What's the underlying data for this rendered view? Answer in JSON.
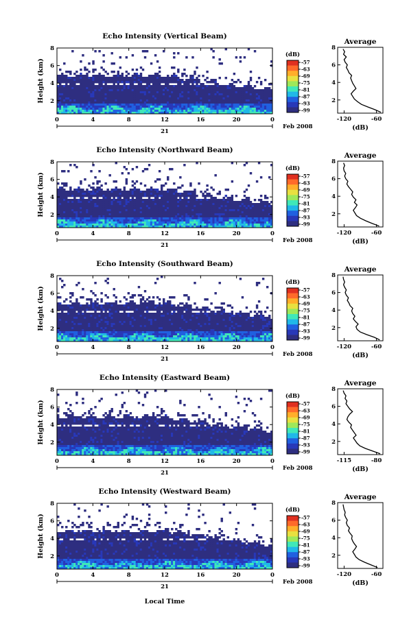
{
  "colorbar": {
    "unit": "(dB)",
    "ticks": [
      "-57",
      "-63",
      "-69",
      "-75",
      "-81",
      "-87",
      "-93",
      "-99"
    ],
    "colors": [
      "#e03020",
      "#ff6a2a",
      "#ffae2a",
      "#e8e040",
      "#9ee85a",
      "#40e8b8",
      "#20b8e8",
      "#2060e0",
      "#2838b8",
      "#2e2e80"
    ]
  },
  "common": {
    "ylabel": "Height (km)",
    "yticks": [
      "2",
      "4",
      "6",
      "8"
    ],
    "xticks": [
      "0",
      "4",
      "8",
      "12",
      "16",
      "20",
      "0"
    ],
    "day": "21",
    "date": "Feb 2008",
    "xlabel": "Local Time",
    "avg_title": "Average",
    "avg_xlabel": "(dB)"
  },
  "chart_data": [
    {
      "type": "heatmap",
      "title": "Echo Intensity (Vertical Beam)",
      "xlim": [
        0,
        24
      ],
      "ylim": [
        0.5,
        8
      ],
      "avg_profile": {
        "xticks": [
          "-120",
          "-60"
        ],
        "xlim": [
          -132,
          -48
        ],
        "height_km": [
          0.6,
          0.9,
          1.2,
          1.5,
          1.8,
          2.1,
          2.4,
          2.7,
          3.0,
          3.3,
          3.6,
          3.9,
          4.2,
          4.5,
          4.8,
          5.1,
          5.4,
          5.7,
          6.0,
          6.3,
          6.6,
          6.9,
          7.2,
          7.5,
          7.8
        ],
        "db": [
          -52,
          -63,
          -76,
          -88,
          -95,
          -101,
          -104,
          -107,
          -103,
          -98,
          -101,
          -104,
          -106,
          -108,
          -106,
          -111,
          -113,
          -116,
          -114,
          -118,
          -120,
          -116,
          -121,
          -119,
          -122
        ]
      }
    },
    {
      "type": "heatmap",
      "title": "Echo Intensity (Northward Beam)",
      "xlim": [
        0,
        24
      ],
      "ylim": [
        0.5,
        8
      ],
      "avg_profile": {
        "xticks": [
          "-120",
          "-60"
        ],
        "xlim": [
          -132,
          -48
        ],
        "height_km": [
          0.6,
          0.9,
          1.2,
          1.5,
          1.8,
          2.1,
          2.4,
          2.7,
          3.0,
          3.3,
          3.6,
          3.9,
          4.2,
          4.5,
          4.8,
          5.1,
          5.4,
          5.7,
          6.0,
          6.3,
          6.6,
          6.9,
          7.2,
          7.5,
          7.8
        ],
        "db": [
          -55,
          -68,
          -80,
          -90,
          -97,
          -100,
          -103,
          -99,
          -96,
          -101,
          -98,
          -103,
          -106,
          -104,
          -108,
          -112,
          -115,
          -113,
          -117,
          -119,
          -117,
          -120,
          -121,
          -119,
          -121
        ]
      }
    },
    {
      "type": "heatmap",
      "title": "Echo Intensity (Southward Beam)",
      "xlim": [
        0,
        24
      ],
      "ylim": [
        0.5,
        8
      ],
      "avg_profile": {
        "xticks": [
          "-120",
          "-60"
        ],
        "xlim": [
          -132,
          -48
        ],
        "height_km": [
          0.6,
          0.9,
          1.2,
          1.5,
          1.8,
          2.1,
          2.4,
          2.7,
          3.0,
          3.3,
          3.6,
          3.9,
          4.2,
          4.5,
          4.8,
          5.1,
          5.4,
          5.7,
          6.0,
          6.3,
          6.6,
          6.9,
          7.2,
          7.5,
          7.8
        ],
        "db": [
          -54,
          -64,
          -78,
          -90,
          -96,
          -98,
          -94,
          -99,
          -103,
          -100,
          -104,
          -106,
          -104,
          -109,
          -111,
          -114,
          -112,
          -116,
          -118,
          -116,
          -119,
          -121,
          -119,
          -121,
          -122
        ]
      }
    },
    {
      "type": "heatmap",
      "title": "Echo Intensity (Eastward Beam)",
      "xlim": [
        0,
        24
      ],
      "ylim": [
        0.5,
        8
      ],
      "avg_profile": {
        "xticks": [
          "-115",
          "-80"
        ],
        "xlim": [
          -122,
          -73
        ],
        "height_km": [
          0.6,
          0.9,
          1.2,
          1.5,
          1.8,
          2.1,
          2.4,
          2.7,
          3.0,
          3.3,
          3.6,
          3.9,
          4.2,
          4.5,
          4.8,
          5.1,
          5.4,
          5.7,
          6.0,
          6.3,
          6.6,
          6.9,
          7.2,
          7.5,
          7.8
        ],
        "db": [
          -76,
          -84,
          -92,
          -98,
          -101,
          -103,
          -105,
          -102,
          -104,
          -106,
          -108,
          -107,
          -110,
          -112,
          -111,
          -109,
          -106,
          -109,
          -111,
          -113,
          -112,
          -114,
          -113,
          -115,
          -116
        ]
      }
    },
    {
      "type": "heatmap",
      "title": "Echo Intensity (Westward Beam)",
      "xlim": [
        0,
        24
      ],
      "ylim": [
        0.5,
        8
      ],
      "avg_profile": {
        "xticks": [
          "-120",
          "-60"
        ],
        "xlim": [
          -132,
          -48
        ],
        "height_km": [
          0.6,
          0.9,
          1.2,
          1.5,
          1.8,
          2.1,
          2.4,
          2.7,
          3.0,
          3.3,
          3.6,
          3.9,
          4.2,
          4.5,
          4.8,
          5.1,
          5.4,
          5.7,
          6.0,
          6.3,
          6.6,
          6.9,
          7.2,
          7.5,
          7.8
        ],
        "db": [
          -58,
          -70,
          -82,
          -92,
          -98,
          -101,
          -104,
          -100,
          -97,
          -101,
          -104,
          -106,
          -105,
          -109,
          -112,
          -110,
          -114,
          -116,
          -114,
          -117,
          -119,
          -118,
          -120,
          -121,
          -122
        ]
      }
    }
  ]
}
